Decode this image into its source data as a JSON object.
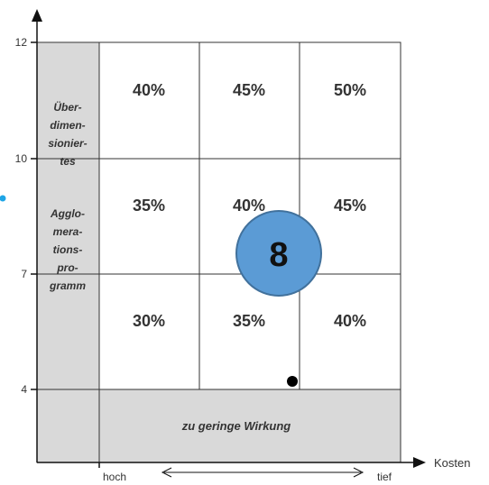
{
  "y_ticks": [
    "12",
    "10",
    "7",
    "4"
  ],
  "x_axis_label": "Kosten",
  "x_low_label": "hoch",
  "x_high_label": "tief",
  "side_label_top": [
    "Über-",
    "dimen-",
    "sionier-",
    "tes"
  ],
  "side_label_bottom": [
    "Agglo-",
    "mera-",
    "tions-",
    "pro-",
    "gramm"
  ],
  "bottom_band_label": "zu geringe Wirkung",
  "grid": {
    "row_top": [
      "40%",
      "45%",
      "50%"
    ],
    "row_mid": [
      "35%",
      "40%",
      "45%"
    ],
    "row_low": [
      "30%",
      "35%",
      "40%"
    ]
  },
  "badge": "8",
  "colors": {
    "shade": "#d9d9d9",
    "badge_fill": "#5b9bd5",
    "badge_stroke": "#41719c",
    "left_dot": "#1ea5e6"
  }
}
